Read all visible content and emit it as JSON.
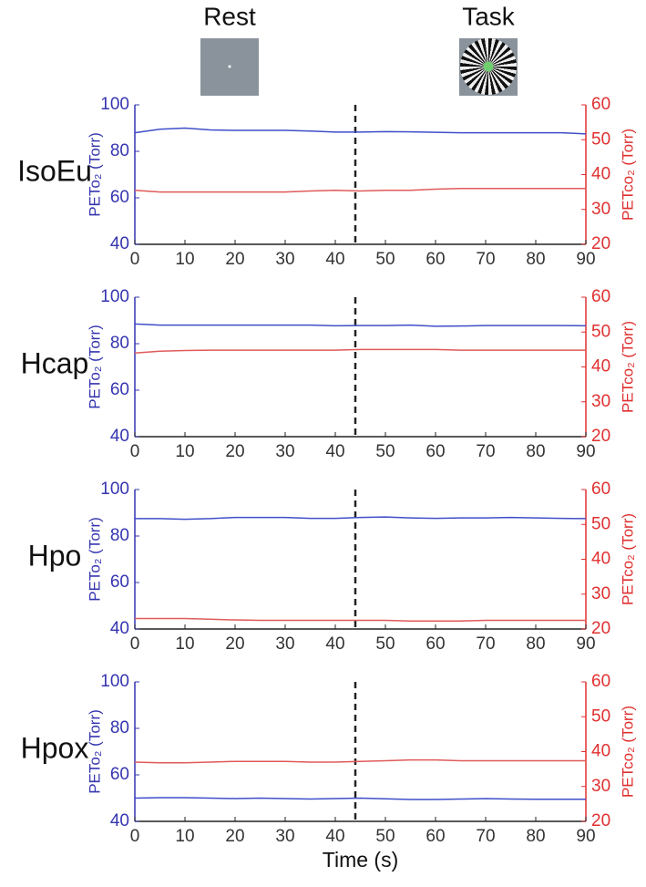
{
  "chart_data": [
    {
      "type": "line",
      "title": "IsoEu",
      "annotations": [
        "Rest",
        "Task"
      ],
      "ylabel": "PETo₂ (Torr)",
      "y2label": "PETco₂ (Torr)",
      "x": [
        0,
        5,
        10,
        15,
        20,
        25,
        30,
        35,
        40,
        45,
        50,
        55,
        60,
        65,
        70,
        75,
        80,
        85,
        90
      ],
      "xlim": [
        0,
        90
      ],
      "xticks": [
        0,
        10,
        20,
        30,
        40,
        50,
        60,
        70,
        80,
        90
      ],
      "ylim": [
        40,
        100
      ],
      "yticks": [
        40,
        60,
        80,
        100
      ],
      "y2lim": [
        20,
        60
      ],
      "y2ticks": [
        20,
        30,
        40,
        50,
        60
      ],
      "vline": 44,
      "series": [
        {
          "color": "#3f4fc9",
          "values": [
            88,
            89.5,
            90,
            89.2,
            89,
            89,
            89,
            88.7,
            88.3,
            88.3,
            88.5,
            88.4,
            88.2,
            88,
            88,
            88,
            88,
            88,
            87.5
          ]
        },
        {
          "color": "#e05a5a",
          "axis": "y2",
          "values": [
            35.5,
            35,
            35,
            35,
            35,
            35,
            35,
            35.3,
            35.5,
            35.3,
            35.5,
            35.5,
            35.8,
            36,
            36,
            36,
            36,
            36,
            36
          ]
        }
      ]
    },
    {
      "type": "line",
      "title": "Hcap",
      "ylabel": "PETo₂ (Torr)",
      "y2label": "PETco₂ (Torr)",
      "x": [
        0,
        5,
        10,
        15,
        20,
        25,
        30,
        35,
        40,
        45,
        50,
        55,
        60,
        65,
        70,
        75,
        80,
        85,
        90
      ],
      "xlim": [
        0,
        90
      ],
      "xticks": [
        0,
        10,
        20,
        30,
        40,
        50,
        60,
        70,
        80,
        90
      ],
      "ylim": [
        40,
        100
      ],
      "yticks": [
        40,
        60,
        80,
        100
      ],
      "y2lim": [
        20,
        60
      ],
      "y2ticks": [
        20,
        30,
        40,
        50,
        60
      ],
      "vline": 44,
      "series": [
        {
          "color": "#3f4fc9",
          "values": [
            88.5,
            88,
            88,
            88,
            88,
            88,
            88,
            88,
            87.7,
            87.8,
            87.8,
            88,
            87.5,
            87.6,
            87.8,
            87.8,
            87.8,
            87.8,
            87.7
          ]
        },
        {
          "color": "#e05a5a",
          "axis": "y2",
          "values": [
            44,
            44.5,
            44.7,
            44.8,
            44.8,
            44.8,
            44.8,
            44.8,
            44.8,
            45,
            45,
            45,
            45,
            44.8,
            44.8,
            44.8,
            44.8,
            44.8,
            44.8
          ]
        }
      ]
    },
    {
      "type": "line",
      "title": "Hpo",
      "ylabel": "PETo₂ (Torr)",
      "y2label": "PETco₂ (Torr)",
      "x": [
        0,
        5,
        10,
        15,
        20,
        25,
        30,
        35,
        40,
        45,
        50,
        55,
        60,
        65,
        70,
        75,
        80,
        85,
        90
      ],
      "xlim": [
        0,
        90
      ],
      "xticks": [
        0,
        10,
        20,
        30,
        40,
        50,
        60,
        70,
        80,
        90
      ],
      "ylim": [
        40,
        100
      ],
      "yticks": [
        40,
        60,
        80,
        100
      ],
      "y2lim": [
        20,
        60
      ],
      "y2ticks": [
        20,
        30,
        40,
        50,
        60
      ],
      "vline": 44,
      "series": [
        {
          "color": "#3f4fc9",
          "values": [
            87.5,
            87.5,
            87.2,
            87.5,
            88,
            88,
            88,
            87.6,
            87.6,
            88,
            88.2,
            87.8,
            87.6,
            87.8,
            87.8,
            88,
            87.8,
            87.6,
            87.5
          ]
        },
        {
          "color": "#e05a5a",
          "axis": "y2",
          "values": [
            23,
            23,
            23,
            22.8,
            22.6,
            22.5,
            22.5,
            22.5,
            22.5,
            22.5,
            22.5,
            22.3,
            22.3,
            22.3,
            22.5,
            22.5,
            22.5,
            22.5,
            22.5
          ]
        }
      ]
    },
    {
      "type": "line",
      "title": "Hpox",
      "xlabel": "Time (s)",
      "ylabel": "PETo₂ (Torr)",
      "y2label": "PETco₂ (Torr)",
      "x": [
        0,
        5,
        10,
        15,
        20,
        25,
        30,
        35,
        40,
        45,
        50,
        55,
        60,
        65,
        70,
        75,
        80,
        85,
        90
      ],
      "xlim": [
        0,
        90
      ],
      "xticks": [
        0,
        10,
        20,
        30,
        40,
        50,
        60,
        70,
        80,
        90
      ],
      "ylim": [
        40,
        100
      ],
      "yticks": [
        40,
        60,
        80,
        100
      ],
      "y2lim": [
        20,
        60
      ],
      "y2ticks": [
        20,
        30,
        40,
        50,
        60
      ],
      "vline": 44,
      "series": [
        {
          "color": "#3f4fc9",
          "values": [
            50,
            50.2,
            50.2,
            50,
            49.8,
            50,
            49.8,
            49.6,
            49.8,
            50,
            49.7,
            49.4,
            49.4,
            49.6,
            49.8,
            49.6,
            49.5,
            49.5,
            49.5
          ]
        },
        {
          "color": "#e05a5a",
          "axis": "y2",
          "values": [
            37,
            36.8,
            36.8,
            37,
            37.2,
            37.2,
            37.2,
            37,
            37,
            37.2,
            37.4,
            37.6,
            37.6,
            37.4,
            37.4,
            37.4,
            37.4,
            37.4,
            37.4
          ]
        }
      ]
    }
  ]
}
